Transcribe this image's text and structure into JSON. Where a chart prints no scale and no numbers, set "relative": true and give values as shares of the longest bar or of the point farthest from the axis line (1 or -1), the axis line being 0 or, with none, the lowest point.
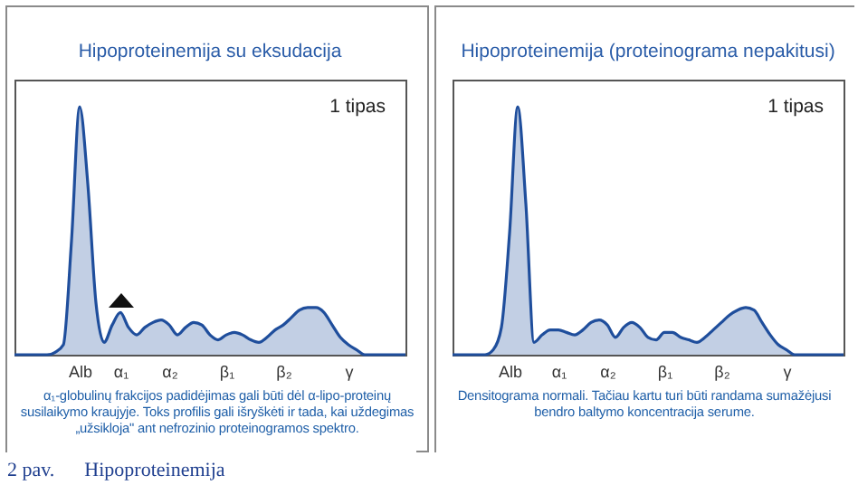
{
  "chart_data": [
    {
      "type": "area",
      "title": "Hipoproteinemija su eksudacija",
      "relative": true,
      "categories": [
        null,
        null,
        null,
        null,
        null,
        null,
        null,
        null,
        "Alb",
        null,
        null,
        null,
        null,
        "α₁",
        null,
        null,
        null,
        null,
        null,
        "α₂",
        null,
        null,
        null,
        null,
        null,
        null,
        "β₁",
        null,
        null,
        null,
        null,
        null,
        null,
        "β₂",
        null,
        null,
        null,
        null,
        null,
        null,
        null,
        "γ",
        null,
        null,
        null,
        null,
        null,
        null,
        null
      ],
      "series": [
        {
          "color": "#1f4e9c",
          "values": [
            0,
            0,
            0,
            0,
            0,
            0.01,
            0.04,
            0.46,
            1,
            0.69,
            0.21,
            0.05,
            0.12,
            0.17,
            0.11,
            0.08,
            0.11,
            0.13,
            0.14,
            0.12,
            0.08,
            0.11,
            0.13,
            0.12,
            0.08,
            0.06,
            0.08,
            0.09,
            0.08,
            0.06,
            0.05,
            0.07,
            0.1,
            0.12,
            0.15,
            0.18,
            0.19,
            0.19,
            0.17,
            0.12,
            0.07,
            0.04,
            0.02,
            0,
            0,
            0,
            0,
            0,
            0
          ]
        }
      ],
      "annotations": [
        "1 tipas",
        "α₁-globulinų frakcijos padidėjimas gali būti dėl α-lipo-proteinų susilaikymo kraujyje. Toks profilis gali išryškėti ir tada, kai uždegimas „užsikloja\" ant nefrozinio proteinogramos spektro.",
        "2 pav.      Hipoproteinemija"
      ]
    },
    {
      "type": "area",
      "title": "Hipoproteinemija  (proteinograma  nepakitusi)",
      "relative": true,
      "categories": [
        null,
        null,
        null,
        null,
        null,
        null,
        null,
        "Alb",
        null,
        null,
        null,
        null,
        null,
        "α₁",
        null,
        null,
        null,
        null,
        null,
        "α₂",
        null,
        null,
        null,
        null,
        null,
        null,
        "β₁",
        null,
        null,
        null,
        null,
        null,
        null,
        "β₂",
        null,
        null,
        null,
        null,
        null,
        null,
        null,
        "γ",
        null,
        null,
        null,
        null,
        null,
        null,
        null
      ],
      "series": [
        {
          "color": "#1f4e9c",
          "values": [
            0,
            0,
            0,
            0,
            0,
            0.02,
            0.11,
            0.49,
            1,
            0.61,
            0.05,
            0.08,
            0.1,
            0.1,
            0.09,
            0.08,
            0.1,
            0.13,
            0.14,
            0.12,
            0.07,
            0.11,
            0.13,
            0.11,
            0.07,
            0.06,
            0.09,
            0.09,
            0.07,
            0.06,
            0.05,
            0.07,
            0.1,
            0.13,
            0.16,
            0.18,
            0.19,
            0.18,
            0.13,
            0.08,
            0.04,
            0.02,
            0,
            0,
            0,
            0,
            0,
            0,
            0
          ]
        }
      ],
      "annotations": [
        "1 tipas",
        "Densitograma normali. Tačiau kartu turi būti randama sumažėjusi bendro baltymo koncentracija serume."
      ]
    }
  ]
}
